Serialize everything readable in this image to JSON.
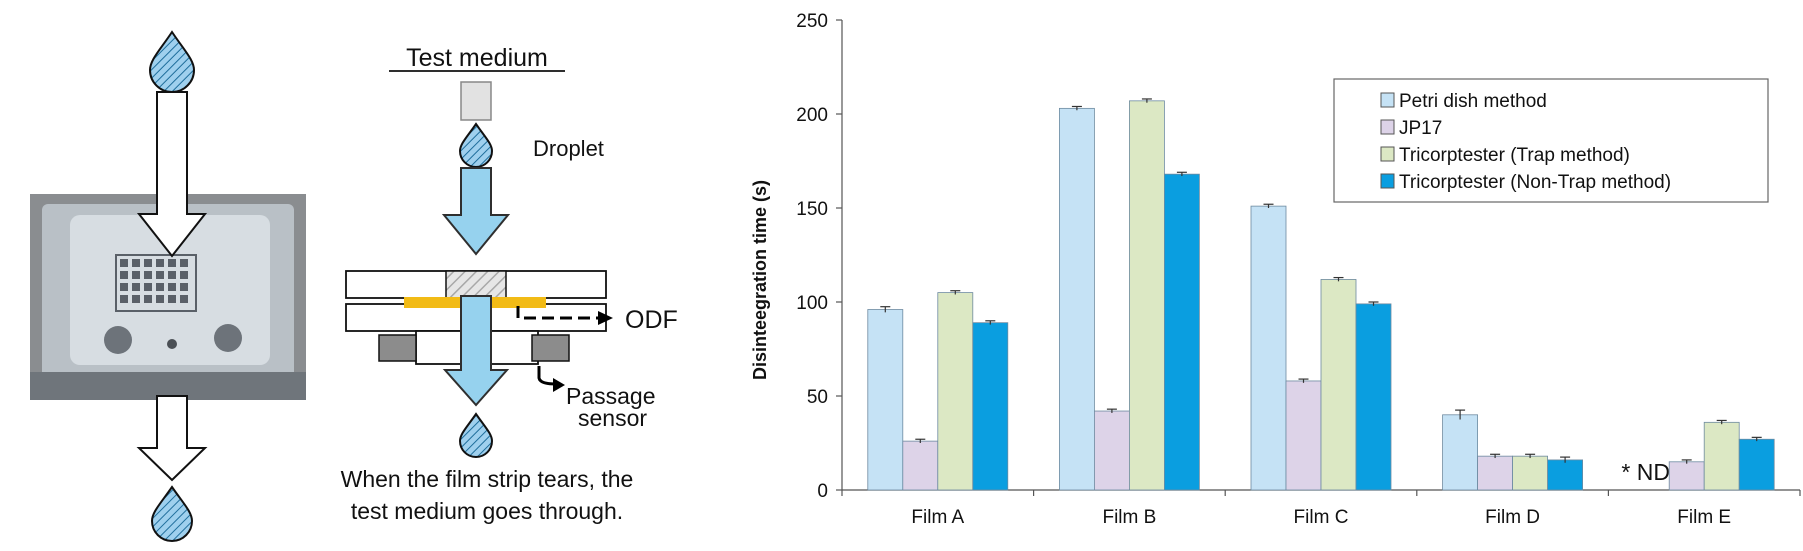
{
  "diagram": {
    "test_medium_label": "Test medium",
    "droplet_label": "Droplet",
    "odf_label": "ODF",
    "passage_label_line1": "Passage",
    "passage_label_line2": "sensor",
    "caption_line1": "When the film strip tears, the",
    "caption_line2": "test medium goes through."
  },
  "colors": {
    "petri": "#c5e2f5",
    "jp17": "#ddd3e8",
    "trap": "#dce8c4",
    "nontrap": "#0a9ee0",
    "arrow_blue": "#96d2ee",
    "film_yellow": "#f2bb16",
    "sensor_gray": "#8c8c8c",
    "droplet_blue": "#3a9ad0"
  },
  "chart_data": {
    "type": "bar",
    "categories": [
      "Film A",
      "Film B",
      "Film C",
      "Film D",
      "Film E"
    ],
    "series": [
      {
        "name": "Petri dish method",
        "values": [
          96,
          203,
          151,
          40,
          null
        ],
        "errors": [
          1.5,
          1,
          1,
          2.5,
          0
        ]
      },
      {
        "name": "JP17",
        "values": [
          26,
          42,
          58,
          18,
          15
        ],
        "errors": [
          1,
          1,
          1,
          1,
          1
        ]
      },
      {
        "name": "Tricorptester (Trap method)",
        "values": [
          105,
          207,
          112,
          18,
          36
        ],
        "errors": [
          1,
          1,
          1,
          1,
          1
        ]
      },
      {
        "name": "Tricorptester (Non-Trap method)",
        "values": [
          89,
          168,
          99,
          16,
          27
        ],
        "errors": [
          1,
          1,
          1,
          1.5,
          1
        ]
      }
    ],
    "ylabel": "Disinteegration  time (s)",
    "xlabel": "",
    "ylim": [
      0,
      250
    ],
    "yticks": [
      0,
      50,
      100,
      150,
      200,
      250
    ],
    "grid": false,
    "legend_position": "top-right",
    "annotations": [
      {
        "category": "Film E",
        "series": "Petri dish method",
        "text": "* ND"
      }
    ]
  }
}
